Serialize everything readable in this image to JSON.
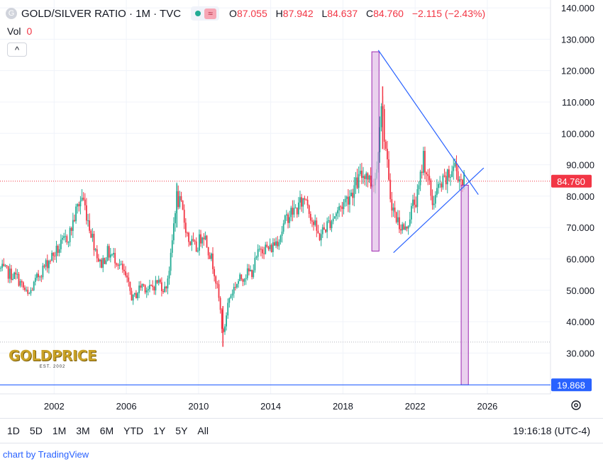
{
  "header": {
    "symbol_icon": "G",
    "title": "GOLD/SILVER RATIO · 1M · TVC",
    "approx_icon": "≈",
    "o_label": "O",
    "o_value": "87.055",
    "h_label": "H",
    "h_value": "87.942",
    "l_label": "L",
    "l_value": "84.637",
    "c_label": "C",
    "c_value": "84.760",
    "change": "−2.115 (−2.43%)"
  },
  "volume": {
    "label": "Vol",
    "value": "0"
  },
  "collapse_icon": "^",
  "time_ranges": [
    "1D",
    "5D",
    "1M",
    "3M",
    "6M",
    "YTD",
    "1Y",
    "5Y",
    "All"
  ],
  "clock": "19:16:18 (UTC-4)",
  "credit": "chart by TradingView",
  "logo": {
    "name": "GOLDPRICE",
    "est": "EST. 2002"
  },
  "colors": {
    "up": "#22ab94",
    "down": "#f23645",
    "trend": "#2962ff",
    "box_fill": "#e1bee7",
    "box_stroke": "#9c27b0",
    "last_price": "#f23645",
    "level": "#2962ff"
  },
  "chart_data": {
    "type": "candlestick",
    "xlim": [
      1999.0,
      2029.5
    ],
    "ylim": [
      17.0,
      142.5
    ],
    "x_ticks": [
      2002,
      2006,
      2010,
      2014,
      2018,
      2022,
      2026
    ],
    "y_ticks": [
      "30.000",
      "40.000",
      "50.000",
      "60.000",
      "70.000",
      "80.000",
      "90.000",
      "100.000",
      "110.000",
      "120.000",
      "130.000",
      "140.000"
    ],
    "y_tick_values": [
      30,
      40,
      50,
      60,
      70,
      80,
      90,
      100,
      110,
      120,
      130,
      140
    ],
    "last_price": {
      "value": 84.76,
      "label": "84.760"
    },
    "horizontal_level": {
      "value": 19.868,
      "label": "19.868"
    },
    "dotted_level": 33.5,
    "anchors": [
      [
        1999.0,
        57
      ],
      [
        2000.0,
        54
      ],
      [
        2000.6,
        48
      ],
      [
        2001.2,
        55
      ],
      [
        2001.8,
        60
      ],
      [
        2002.4,
        64
      ],
      [
        2002.9,
        68
      ],
      [
        2003.3,
        76
      ],
      [
        2003.6,
        80
      ],
      [
        2003.9,
        73
      ],
      [
        2004.2,
        66
      ],
      [
        2004.6,
        58
      ],
      [
        2005.0,
        62
      ],
      [
        2005.5,
        60
      ],
      [
        2006.0,
        54
      ],
      [
        2006.4,
        47
      ],
      [
        2006.9,
        52
      ],
      [
        2007.3,
        50
      ],
      [
        2007.8,
        53
      ],
      [
        2008.2,
        50
      ],
      [
        2008.5,
        60
      ],
      [
        2008.8,
        80
      ],
      [
        2009.1,
        76
      ],
      [
        2009.5,
        66
      ],
      [
        2009.9,
        63
      ],
      [
        2010.3,
        69
      ],
      [
        2010.6,
        63
      ],
      [
        2010.9,
        57
      ],
      [
        2011.2,
        46
      ],
      [
        2011.4,
        35
      ],
      [
        2011.7,
        47
      ],
      [
        2012.1,
        52
      ],
      [
        2012.6,
        55
      ],
      [
        2013.0,
        56
      ],
      [
        2013.5,
        64
      ],
      [
        2014.0,
        63
      ],
      [
        2014.5,
        67
      ],
      [
        2015.0,
        74
      ],
      [
        2015.5,
        76
      ],
      [
        2016.0,
        80
      ],
      [
        2016.3,
        73
      ],
      [
        2016.7,
        67
      ],
      [
        2017.2,
        71
      ],
      [
        2017.7,
        75
      ],
      [
        2018.1,
        78
      ],
      [
        2018.6,
        82
      ],
      [
        2019.0,
        86
      ],
      [
        2019.3,
        88
      ],
      [
        2019.6,
        84
      ],
      [
        2019.9,
        87
      ],
      [
        2020.15,
        112
      ],
      [
        2020.4,
        96
      ],
      [
        2020.6,
        82
      ],
      [
        2020.9,
        74
      ],
      [
        2021.2,
        71
      ],
      [
        2021.5,
        69
      ],
      [
        2021.9,
        77
      ],
      [
        2022.2,
        80
      ],
      [
        2022.5,
        93
      ],
      [
        2022.75,
        85
      ],
      [
        2023.0,
        78
      ],
      [
        2023.3,
        82
      ],
      [
        2023.6,
        84
      ],
      [
        2023.9,
        86
      ],
      [
        2024.2,
        90
      ],
      [
        2024.5,
        86
      ],
      [
        2024.7,
        84.76
      ]
    ],
    "trend_lines": [
      {
        "x1": 2019.96,
        "y1": 126.5,
        "x2": 2025.5,
        "y2": 80.5
      },
      {
        "x1": 2020.8,
        "y1": 62.0,
        "x2": 2025.8,
        "y2": 89.0
      }
    ],
    "boxes": [
      {
        "x1": 2019.6,
        "x2": 2020.0,
        "y1": 62.5,
        "y2": 126.0
      },
      {
        "x1": 2024.55,
        "x2": 2024.95,
        "y1": 19.868,
        "y2": 83.5
      }
    ]
  }
}
